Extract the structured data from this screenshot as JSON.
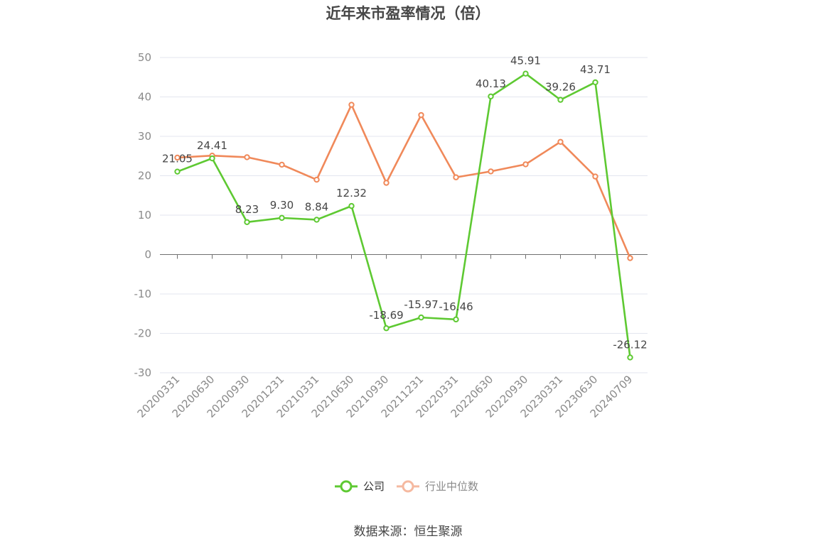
{
  "chart_data": {
    "type": "line",
    "title": "近年来市盈率情况（倍）",
    "categories": [
      "20200331",
      "20200630",
      "20200930",
      "20201231",
      "20210331",
      "20210630",
      "20210930",
      "20211231",
      "20220331",
      "20220630",
      "20220930",
      "20230331",
      "20230630",
      "20240709"
    ],
    "series": [
      {
        "name": "公司",
        "color": "#5ec932",
        "values": [
          21.05,
          24.41,
          8.23,
          9.3,
          8.84,
          12.32,
          -18.69,
          -15.97,
          -16.46,
          40.13,
          45.91,
          39.26,
          43.71,
          -26.12
        ],
        "labels": [
          "21.05",
          "24.41",
          "8.23",
          "9.30",
          "8.84",
          "12.32",
          "-18.69",
          "-15.97",
          "-16.46",
          "40.13",
          "45.91",
          "39.26",
          "43.71",
          "-26.12"
        ]
      },
      {
        "name": "行业中位数",
        "color": "#f0895a",
        "values": [
          24.6,
          25.1,
          24.7,
          22.8,
          19.0,
          38.0,
          18.2,
          35.4,
          19.6,
          21.1,
          22.9,
          28.6,
          19.8,
          -0.9
        ]
      }
    ],
    "yticks": [
      "50",
      "40",
      "30",
      "20",
      "10",
      "0",
      "-10",
      "-20",
      "-30"
    ],
    "ylim": [
      -30,
      50
    ],
    "grid": true,
    "legend_position": "bottom-center",
    "source": "数据来源：恒生聚源"
  }
}
